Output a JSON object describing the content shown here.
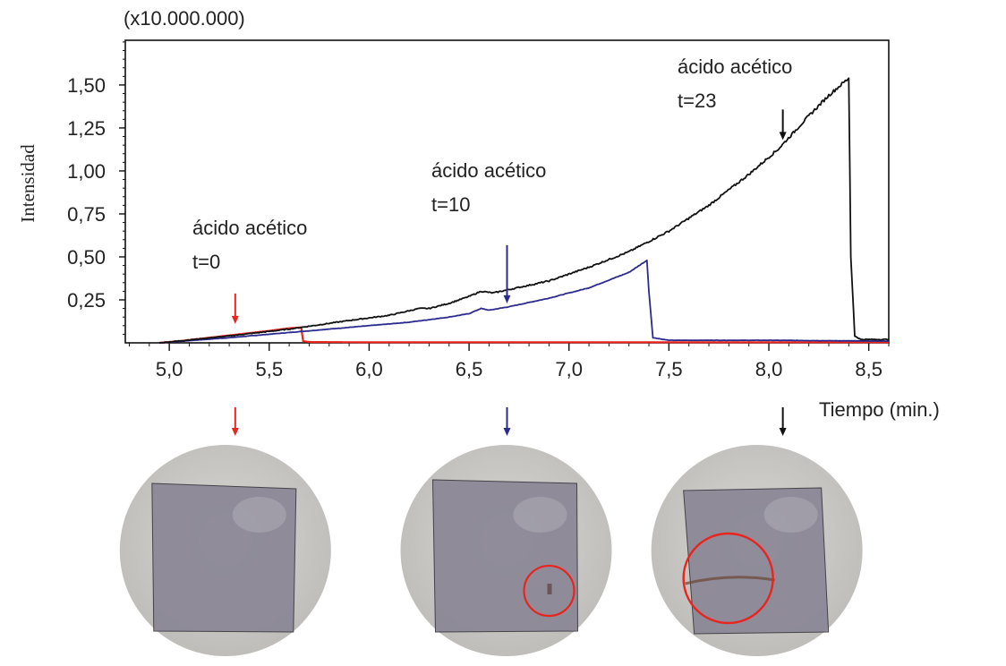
{
  "chart_data": {
    "type": "line",
    "title": "",
    "multiplier_label": "(x10.000.000)",
    "xlabel": "Tiempo (min.)",
    "ylabel": "Intensidad",
    "xlim": [
      4.78,
      8.6
    ],
    "ylim": [
      0,
      1.76
    ],
    "x_ticks": [
      5.0,
      5.5,
      6.0,
      6.5,
      7.0,
      7.5,
      8.0,
      8.5
    ],
    "x_tick_labels": [
      "5,0",
      "5,5",
      "6,0",
      "6,5",
      "7,0",
      "7,5",
      "8,0",
      "8,5"
    ],
    "y_ticks": [
      0.25,
      0.5,
      0.75,
      1.0,
      1.25,
      1.5
    ],
    "y_tick_labels": [
      "0,25",
      "0,50",
      "0,75",
      "1,00",
      "1,25",
      "1,50"
    ],
    "grid": false,
    "legend": "none",
    "series": [
      {
        "color": "#e8251f",
        "x": [
          4.95,
          5.05,
          5.2,
          5.35,
          5.5,
          5.6,
          5.66,
          5.67,
          5.7,
          6.0,
          7.0,
          8.6
        ],
        "y": [
          0.0,
          0.01,
          0.03,
          0.05,
          0.07,
          0.085,
          0.09,
          0.01,
          0.005,
          0.003,
          0.003,
          0.003
        ]
      },
      {
        "color": "#2b2a8f",
        "x": [
          4.95,
          5.3,
          5.6,
          5.9,
          6.2,
          6.4,
          6.5,
          6.56,
          6.6,
          6.7,
          6.9,
          7.1,
          7.3,
          7.39,
          7.4,
          7.42,
          7.5,
          8.0,
          8.6
        ],
        "y": [
          0.0,
          0.03,
          0.06,
          0.09,
          0.12,
          0.15,
          0.17,
          0.2,
          0.19,
          0.21,
          0.26,
          0.32,
          0.41,
          0.48,
          0.3,
          0.03,
          0.015,
          0.015,
          0.01
        ],
        "noise": 0.004
      },
      {
        "color": "#111111",
        "x": [
          4.95,
          5.3,
          5.6,
          5.9,
          6.1,
          6.25,
          6.3,
          6.4,
          6.5,
          6.56,
          6.62,
          6.7,
          6.9,
          7.1,
          7.3,
          7.5,
          7.7,
          7.9,
          8.05,
          8.2,
          8.3,
          8.36,
          8.4,
          8.41,
          8.43,
          8.46,
          8.6
        ],
        "y": [
          0.0,
          0.04,
          0.08,
          0.13,
          0.16,
          0.2,
          0.2,
          0.23,
          0.27,
          0.3,
          0.29,
          0.31,
          0.36,
          0.44,
          0.53,
          0.65,
          0.8,
          0.98,
          1.13,
          1.32,
          1.44,
          1.5,
          1.54,
          0.5,
          0.04,
          0.02,
          0.02
        ],
        "noise": 0.01
      }
    ],
    "annotations": [
      {
        "line1": "ácido acético",
        "line2": "t=0",
        "x": 5.33,
        "y": 0.11,
        "color": "#e8251f"
      },
      {
        "line1": "ácido acético",
        "line2": "t=10",
        "x": 6.69,
        "y": 0.23,
        "color": "#2b2a8f"
      },
      {
        "line1": "ácido acético",
        "line2": "t=23",
        "x": 8.07,
        "y": 1.18,
        "color": "#111111"
      }
    ],
    "sample_photos": [
      {
        "x": 5.33,
        "color": "#e8251f",
        "has_mark": false
      },
      {
        "x": 6.69,
        "color": "#2b2a8f",
        "has_mark": true
      },
      {
        "x": 8.07,
        "color": "#111111",
        "has_mark": true
      }
    ]
  }
}
